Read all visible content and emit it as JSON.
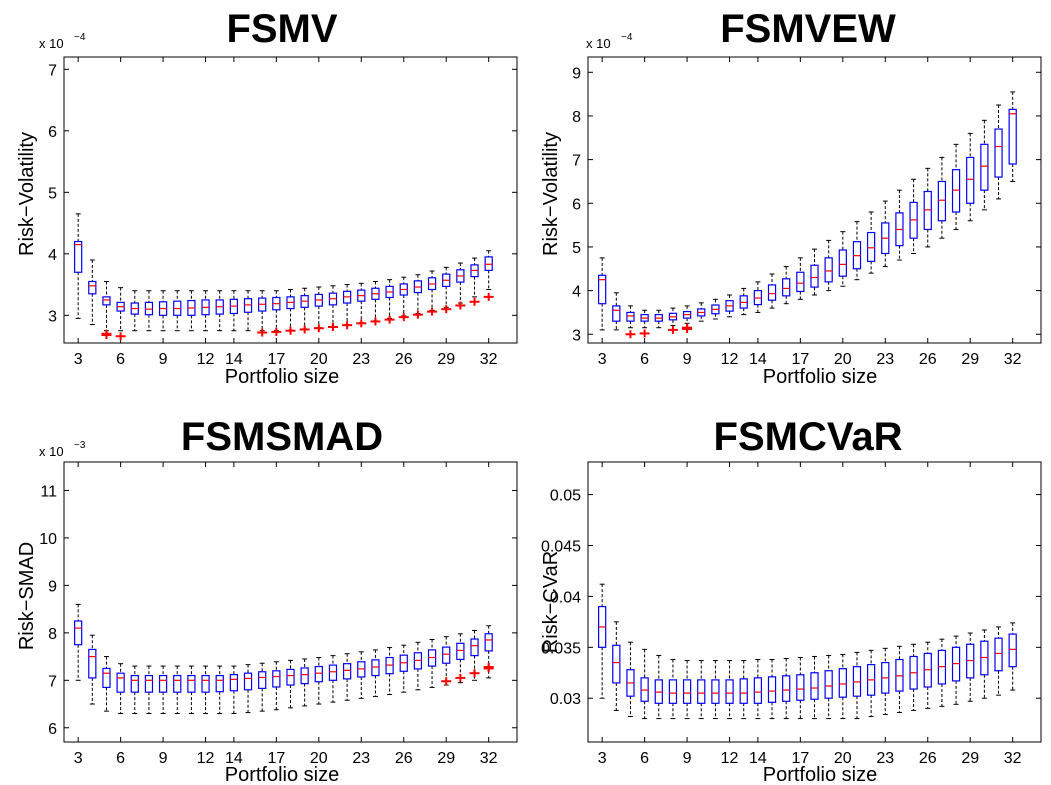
{
  "chart_data": [
    {
      "type": "box",
      "title": "FSMV",
      "xlabel": "Portfolio size",
      "ylabel": "Risk−Volatility",
      "y_multiplier": {
        "base": "x 10",
        "exponent": "−4"
      },
      "xlim": [
        2,
        34
      ],
      "ylim": [
        2.55,
        7.2
      ],
      "yticks": [
        3,
        4,
        5,
        6,
        7
      ],
      "ytick_labels": [
        "3",
        "4",
        "5",
        "6",
        "7"
      ],
      "xticks": [
        3,
        6,
        9,
        12,
        14,
        17,
        20,
        23,
        26,
        29,
        32
      ],
      "xtick_labels": [
        "3",
        "6",
        "9",
        "12",
        "14",
        "17",
        "20",
        "23",
        "26",
        "29",
        "32"
      ],
      "box_color": "#0000ff",
      "median_color": "#ff0000",
      "outlier_color": "#ff0000",
      "x": [
        3,
        4,
        5,
        6,
        7,
        8,
        9,
        10,
        11,
        12,
        13,
        14,
        15,
        16,
        17,
        18,
        19,
        20,
        21,
        22,
        23,
        24,
        25,
        26,
        27,
        28,
        29,
        30,
        31,
        32
      ],
      "whisker_low": [
        2.95,
        2.85,
        2.75,
        2.75,
        2.75,
        2.75,
        2.75,
        2.75,
        2.75,
        2.75,
        2.75,
        2.75,
        2.75,
        2.75,
        2.75,
        2.76,
        2.78,
        2.8,
        2.82,
        2.85,
        2.88,
        2.91,
        2.95,
        2.99,
        3.03,
        3.08,
        3.13,
        3.2,
        3.3,
        3.42
      ],
      "q1": [
        3.7,
        3.35,
        3.17,
        3.07,
        3.02,
        3.01,
        3.0,
        3.0,
        3.0,
        3.01,
        3.02,
        3.03,
        3.05,
        3.07,
        3.09,
        3.11,
        3.13,
        3.15,
        3.17,
        3.2,
        3.23,
        3.26,
        3.29,
        3.33,
        3.37,
        3.42,
        3.47,
        3.54,
        3.63,
        3.73
      ],
      "median": [
        4.15,
        3.48,
        3.25,
        3.14,
        3.11,
        3.1,
        3.11,
        3.11,
        3.12,
        3.13,
        3.14,
        3.15,
        3.17,
        3.18,
        3.19,
        3.21,
        3.23,
        3.25,
        3.27,
        3.3,
        3.32,
        3.35,
        3.38,
        3.42,
        3.46,
        3.51,
        3.57,
        3.64,
        3.73,
        3.83
      ],
      "q3": [
        4.2,
        3.55,
        3.3,
        3.21,
        3.2,
        3.21,
        3.22,
        3.23,
        3.24,
        3.25,
        3.25,
        3.26,
        3.27,
        3.28,
        3.29,
        3.3,
        3.32,
        3.34,
        3.36,
        3.39,
        3.41,
        3.44,
        3.47,
        3.51,
        3.56,
        3.61,
        3.67,
        3.74,
        3.82,
        3.95
      ],
      "whisker_high": [
        4.65,
        3.9,
        3.55,
        3.45,
        3.4,
        3.4,
        3.4,
        3.4,
        3.4,
        3.4,
        3.4,
        3.4,
        3.4,
        3.4,
        3.4,
        3.42,
        3.44,
        3.46,
        3.48,
        3.5,
        3.52,
        3.55,
        3.58,
        3.62,
        3.66,
        3.72,
        3.78,
        3.85,
        3.93,
        4.05
      ],
      "outliers": [
        [
          5,
          2.68
        ],
        [
          5,
          2.7
        ],
        [
          6,
          2.66
        ],
        [
          16,
          2.72
        ],
        [
          17,
          2.73
        ],
        [
          18,
          2.75
        ],
        [
          19,
          2.77
        ],
        [
          20,
          2.79
        ],
        [
          21,
          2.81
        ],
        [
          22,
          2.84
        ],
        [
          23,
          2.87
        ],
        [
          24,
          2.9
        ],
        [
          25,
          2.93
        ],
        [
          26,
          2.97
        ],
        [
          27,
          3.01
        ],
        [
          28,
          3.06
        ],
        [
          29,
          3.1
        ],
        [
          30,
          3.16
        ],
        [
          31,
          3.22
        ],
        [
          32,
          3.3
        ]
      ]
    },
    {
      "type": "box",
      "title": "FSMVEW",
      "xlabel": "Portfolio size",
      "ylabel": "Risk−Volatility",
      "y_multiplier": {
        "base": "x 10",
        "exponent": "−4"
      },
      "xlim": [
        2,
        34
      ],
      "ylim": [
        2.8,
        9.35
      ],
      "yticks": [
        3,
        4,
        5,
        6,
        7,
        8,
        9
      ],
      "ytick_labels": [
        "3",
        "4",
        "5",
        "6",
        "7",
        "8",
        "9"
      ],
      "xticks": [
        3,
        6,
        9,
        12,
        14,
        17,
        20,
        23,
        26,
        29,
        32
      ],
      "xtick_labels": [
        "3",
        "6",
        "9",
        "12",
        "14",
        "17",
        "20",
        "23",
        "26",
        "29",
        "32"
      ],
      "box_color": "#0000ff",
      "median_color": "#ff0000",
      "outlier_color": "#ff0000",
      "x": [
        3,
        4,
        5,
        6,
        7,
        8,
        9,
        10,
        11,
        12,
        13,
        14,
        15,
        16,
        17,
        18,
        19,
        20,
        21,
        22,
        23,
        24,
        25,
        26,
        27,
        28,
        29,
        30,
        31,
        32
      ],
      "whisker_low": [
        3.1,
        3.1,
        3.15,
        3.15,
        3.15,
        3.2,
        3.25,
        3.3,
        3.35,
        3.4,
        3.45,
        3.5,
        3.6,
        3.7,
        3.8,
        3.9,
        4.0,
        4.1,
        4.25,
        4.4,
        4.55,
        4.7,
        4.85,
        5.0,
        5.2,
        5.4,
        5.6,
        5.85,
        6.1,
        6.5
      ],
      "q1": [
        3.7,
        3.3,
        3.3,
        3.3,
        3.3,
        3.33,
        3.37,
        3.42,
        3.47,
        3.53,
        3.6,
        3.68,
        3.78,
        3.88,
        3.98,
        4.08,
        4.2,
        4.33,
        4.5,
        4.67,
        4.85,
        5.03,
        5.2,
        5.4,
        5.6,
        5.8,
        6.0,
        6.3,
        6.6,
        6.9
      ],
      "median": [
        4.25,
        3.55,
        3.42,
        3.37,
        3.37,
        3.4,
        3.45,
        3.5,
        3.57,
        3.65,
        3.73,
        3.83,
        3.93,
        4.05,
        4.17,
        4.3,
        4.45,
        4.6,
        4.8,
        4.98,
        5.2,
        5.4,
        5.62,
        5.85,
        6.07,
        6.3,
        6.55,
        6.85,
        7.3,
        8.05
      ],
      "q3": [
        4.35,
        3.65,
        3.5,
        3.45,
        3.45,
        3.48,
        3.52,
        3.58,
        3.67,
        3.77,
        3.88,
        4.0,
        4.13,
        4.27,
        4.42,
        4.58,
        4.75,
        4.93,
        5.12,
        5.33,
        5.55,
        5.78,
        6.02,
        6.27,
        6.5,
        6.77,
        7.05,
        7.35,
        7.7,
        8.15
      ],
      "whisker_high": [
        4.75,
        3.95,
        3.65,
        3.55,
        3.55,
        3.6,
        3.65,
        3.72,
        3.8,
        3.9,
        4.05,
        4.2,
        4.38,
        4.55,
        4.75,
        4.95,
        5.15,
        5.35,
        5.58,
        5.8,
        6.05,
        6.3,
        6.55,
        6.8,
        7.05,
        7.35,
        7.6,
        7.9,
        8.25,
        8.55
      ],
      "outliers": [
        [
          5,
          3.0
        ],
        [
          6,
          3.02
        ],
        [
          8,
          3.1
        ],
        [
          9,
          3.12
        ],
        [
          9,
          3.15
        ]
      ]
    },
    {
      "type": "box",
      "title": "FSMSMAD",
      "xlabel": "Portfolio size",
      "ylabel": "Risk−SMAD",
      "y_multiplier": {
        "base": "x 10",
        "exponent": "−3"
      },
      "xlim": [
        2,
        34
      ],
      "ylim": [
        5.7,
        11.6
      ],
      "yticks": [
        6,
        7,
        8,
        9,
        10,
        11
      ],
      "ytick_labels": [
        "6",
        "7",
        "8",
        "9",
        "10",
        "11"
      ],
      "xticks": [
        3,
        6,
        9,
        12,
        14,
        17,
        20,
        23,
        26,
        29,
        32
      ],
      "xtick_labels": [
        "3",
        "6",
        "9",
        "12",
        "14",
        "17",
        "20",
        "23",
        "26",
        "29",
        "32"
      ],
      "box_color": "#0000ff",
      "median_color": "#ff0000",
      "outlier_color": "#ff0000",
      "x": [
        3,
        4,
        5,
        6,
        7,
        8,
        9,
        10,
        11,
        12,
        13,
        14,
        15,
        16,
        17,
        18,
        19,
        20,
        21,
        22,
        23,
        24,
        25,
        26,
        27,
        28,
        29,
        30,
        31,
        32
      ],
      "whisker_low": [
        7.0,
        6.5,
        6.35,
        6.3,
        6.3,
        6.3,
        6.3,
        6.3,
        6.3,
        6.3,
        6.3,
        6.3,
        6.32,
        6.35,
        6.38,
        6.42,
        6.46,
        6.5,
        6.54,
        6.58,
        6.62,
        6.66,
        6.7,
        6.75,
        6.8,
        6.85,
        6.9,
        6.95,
        7.0,
        7.05
      ],
      "q1": [
        7.75,
        7.05,
        6.85,
        6.75,
        6.75,
        6.75,
        6.75,
        6.75,
        6.75,
        6.75,
        6.76,
        6.78,
        6.8,
        6.83,
        6.86,
        6.9,
        6.93,
        6.97,
        7.0,
        7.03,
        7.07,
        7.1,
        7.14,
        7.19,
        7.24,
        7.3,
        7.36,
        7.44,
        7.52,
        7.62
      ],
      "median": [
        8.1,
        7.5,
        7.15,
        7.05,
        7.0,
        7.0,
        7.0,
        7.0,
        7.0,
        7.0,
        7.0,
        7.02,
        7.04,
        7.06,
        7.08,
        7.1,
        7.12,
        7.15,
        7.18,
        7.21,
        7.24,
        7.28,
        7.32,
        7.37,
        7.42,
        7.48,
        7.55,
        7.63,
        7.73,
        7.85
      ],
      "q3": [
        8.25,
        7.65,
        7.25,
        7.15,
        7.1,
        7.1,
        7.1,
        7.1,
        7.1,
        7.1,
        7.1,
        7.12,
        7.15,
        7.18,
        7.2,
        7.23,
        7.26,
        7.29,
        7.32,
        7.35,
        7.39,
        7.43,
        7.48,
        7.53,
        7.58,
        7.64,
        7.7,
        7.78,
        7.87,
        7.98
      ],
      "whisker_high": [
        8.6,
        7.95,
        7.5,
        7.35,
        7.3,
        7.3,
        7.3,
        7.3,
        7.3,
        7.3,
        7.3,
        7.3,
        7.33,
        7.36,
        7.39,
        7.42,
        7.45,
        7.48,
        7.52,
        7.56,
        7.6,
        7.64,
        7.69,
        7.74,
        7.8,
        7.86,
        7.92,
        7.98,
        8.05,
        8.15
      ],
      "outliers": [
        [
          29,
          6.98
        ],
        [
          30,
          7.05
        ],
        [
          31,
          7.15
        ],
        [
          32,
          7.25
        ],
        [
          32,
          7.28
        ]
      ]
    },
    {
      "type": "box",
      "title": "FSMCVaR",
      "xlabel": "Portfolio size",
      "ylabel": "Risk−CVaR",
      "xlim": [
        2,
        34
      ],
      "ylim": [
        0.0257,
        0.0532
      ],
      "yticks": [
        0.03,
        0.035,
        0.04,
        0.045,
        0.05
      ],
      "ytick_labels": [
        "0.03",
        "0.035",
        "0.04",
        "0.045",
        "0.05"
      ],
      "xticks": [
        3,
        6,
        9,
        12,
        14,
        17,
        20,
        23,
        26,
        29,
        32
      ],
      "xtick_labels": [
        "3",
        "6",
        "9",
        "12",
        "14",
        "17",
        "20",
        "23",
        "26",
        "29",
        "32"
      ],
      "box_color": "#0000ff",
      "median_color": "#ff0000",
      "outlier_color": "#ff0000",
      "x": [
        3,
        4,
        5,
        6,
        7,
        8,
        9,
        10,
        11,
        12,
        13,
        14,
        15,
        16,
        17,
        18,
        19,
        20,
        21,
        22,
        23,
        24,
        25,
        26,
        27,
        28,
        29,
        30,
        31,
        32
      ],
      "whisker_low": [
        0.03,
        0.0288,
        0.0282,
        0.028,
        0.028,
        0.028,
        0.028,
        0.028,
        0.028,
        0.028,
        0.028,
        0.028,
        0.028,
        0.028,
        0.028,
        0.028,
        0.028,
        0.028,
        0.028,
        0.0282,
        0.0284,
        0.0286,
        0.0288,
        0.029,
        0.0292,
        0.0294,
        0.0297,
        0.03,
        0.0303,
        0.0308
      ],
      "q1": [
        0.035,
        0.0315,
        0.0302,
        0.0297,
        0.0295,
        0.0295,
        0.0295,
        0.0295,
        0.0295,
        0.0295,
        0.0295,
        0.0295,
        0.0296,
        0.0297,
        0.0298,
        0.0299,
        0.03,
        0.0301,
        0.0302,
        0.0303,
        0.0305,
        0.0307,
        0.0309,
        0.0311,
        0.0314,
        0.0317,
        0.032,
        0.0323,
        0.0327,
        0.0331
      ],
      "median": [
        0.037,
        0.0335,
        0.0315,
        0.0308,
        0.0306,
        0.0305,
        0.0305,
        0.0305,
        0.0305,
        0.0305,
        0.0305,
        0.0306,
        0.0307,
        0.0308,
        0.0309,
        0.031,
        0.0312,
        0.0314,
        0.0316,
        0.0318,
        0.032,
        0.0322,
        0.0325,
        0.0328,
        0.0331,
        0.0334,
        0.0337,
        0.034,
        0.0344,
        0.0348
      ],
      "q3": [
        0.039,
        0.0352,
        0.0328,
        0.032,
        0.0318,
        0.0318,
        0.0318,
        0.0318,
        0.0318,
        0.0318,
        0.0319,
        0.032,
        0.0321,
        0.0322,
        0.0323,
        0.0325,
        0.0327,
        0.0329,
        0.0331,
        0.0333,
        0.0335,
        0.0338,
        0.0341,
        0.0344,
        0.0347,
        0.035,
        0.0353,
        0.0356,
        0.0359,
        0.0363
      ],
      "whisker_high": [
        0.0412,
        0.0375,
        0.0355,
        0.0348,
        0.0342,
        0.0338,
        0.0337,
        0.0337,
        0.0337,
        0.0337,
        0.0337,
        0.0338,
        0.0338,
        0.0339,
        0.034,
        0.0341,
        0.0342,
        0.0343,
        0.0345,
        0.0347,
        0.0349,
        0.0351,
        0.0353,
        0.0355,
        0.0358,
        0.0361,
        0.0364,
        0.0367,
        0.037,
        0.0374
      ],
      "outliers": []
    }
  ]
}
